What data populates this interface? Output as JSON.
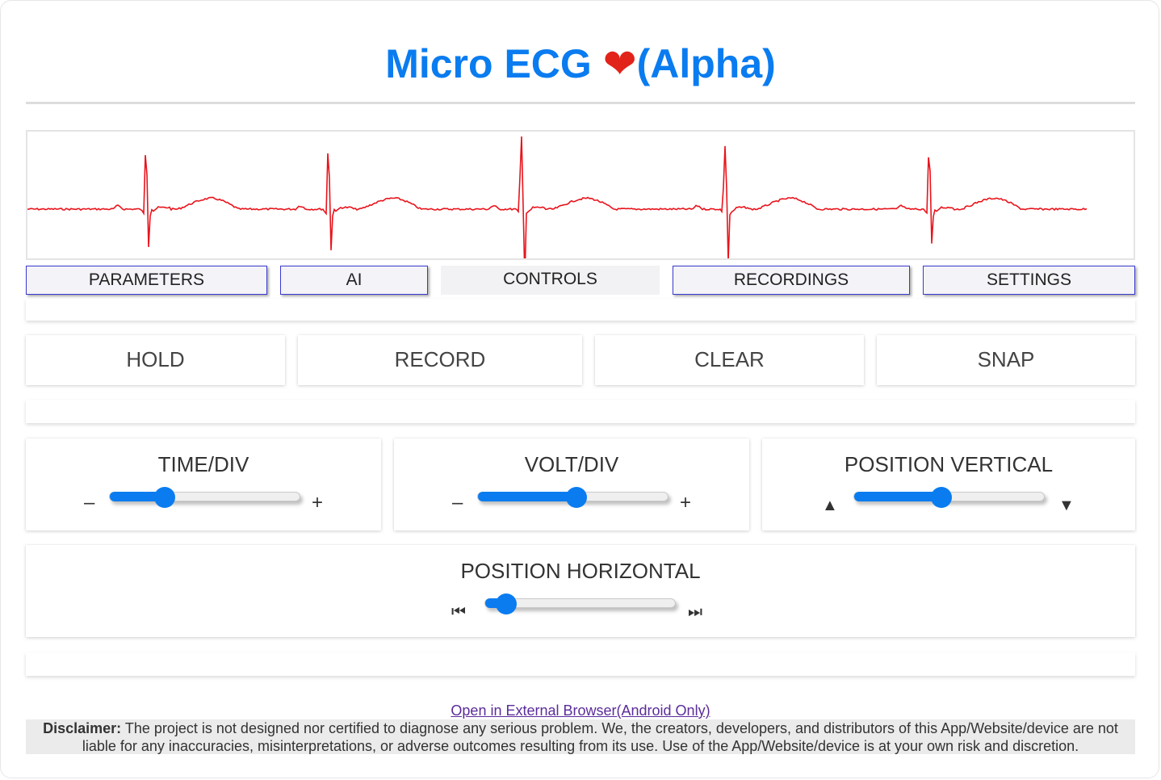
{
  "app": {
    "title": "Micro ECG ",
    "heart": "❤",
    "title_suffix": "(Alpha)"
  },
  "ecg": {
    "trace_color": "#e8141c",
    "beats_at": [
      0.11,
      0.28,
      0.46,
      0.65,
      0.84
    ]
  },
  "tabs": [
    {
      "label": "PARAMETERS"
    },
    {
      "label": "AI"
    },
    {
      "label": "CONTROLS"
    },
    {
      "label": "RECORDINGS"
    },
    {
      "label": "SETTINGS"
    }
  ],
  "controls": {
    "hold": "HOLD",
    "record": "RECORD",
    "clear": "CLEAR",
    "snap": "SNAP"
  },
  "sliders": {
    "time_div": {
      "label": "TIME/DIV",
      "minus": "–",
      "plus": "+",
      "value": 0.29
    },
    "volt_div": {
      "label": "VOLT/DIV",
      "minus": "–",
      "plus": "+",
      "value": 0.52
    },
    "position_vertical": {
      "label": "POSITION VERTICAL",
      "up": "▲",
      "down": "▼",
      "value": 0.46
    },
    "position_horizontal": {
      "label": "POSITION HORIZONTAL",
      "start": "⏮",
      "end": "⏭",
      "value": 0.11
    }
  },
  "footer": {
    "link": "Open in External Browser(Android Only)",
    "disclaimer_label": "Disclaimer:",
    "disclaimer_text": " The project is not designed nor certified to diagnose any serious problem. We, the creators, developers, and distributors of this App/Website/device are not liable for any inaccuracies, misinterpretations, or adverse outcomes resulting from its use. Use of the App/Website/device is at your own risk and discretion."
  },
  "colors": {
    "accent": "#0a7cf0",
    "heart": "#e2231a",
    "trace": "#e8141c"
  }
}
